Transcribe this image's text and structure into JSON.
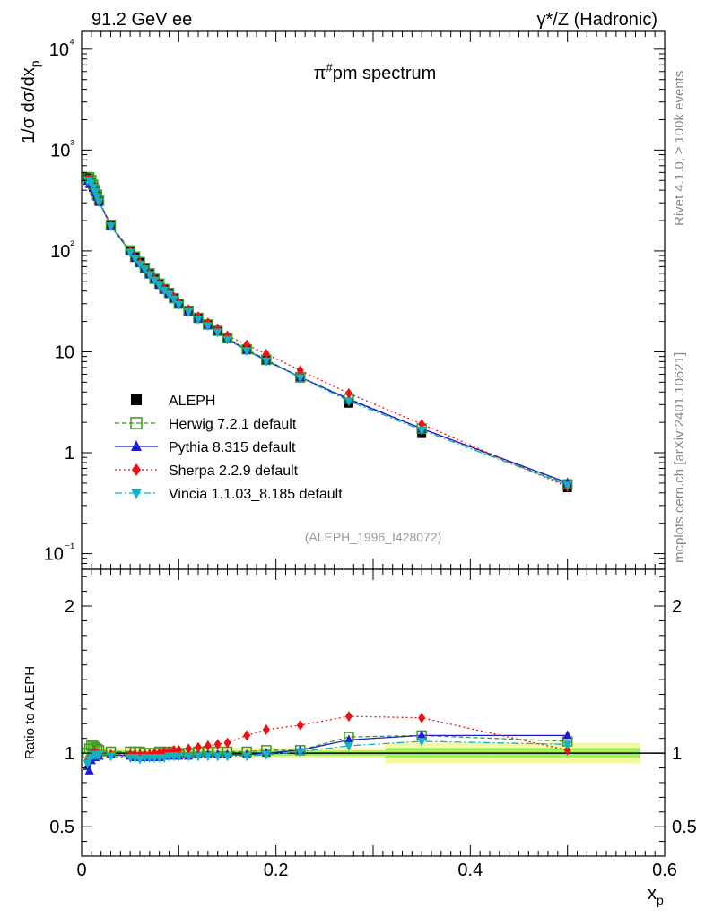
{
  "header": {
    "left": "91.2 GeV ee",
    "right": "γ*/Z (Hadronic)"
  },
  "side_text": {
    "top": "Rivet 4.1.0, ≥ 100k events",
    "bottom": "mcplots.cern.ch [arXiv:2401.10621]"
  },
  "chart_data": {
    "type": "line",
    "title": "π#pm spectrum",
    "watermark": "(ALEPH_1996_I428072)",
    "xlabel": "x_p",
    "ylabel_top": "1/σ dσ/dx_p",
    "ylabel_bottom": "Ratio to ALEPH",
    "xlim": [
      0,
      0.6
    ],
    "ylim_top": [
      0.07,
      15000
    ],
    "ylim_bottom": [
      0.3,
      2.25
    ],
    "yscale_top": "log",
    "x_ticks": [
      "0",
      "0.2",
      "0.4",
      "0.6"
    ],
    "y_ticks_top": [
      "10⁻¹",
      "1",
      "10",
      "10²",
      "10³",
      "10⁴"
    ],
    "y_ticks_bottom": [
      "0.5",
      "1",
      "2"
    ],
    "x": [
      0.006,
      0.008,
      0.01,
      0.012,
      0.014,
      0.016,
      0.018,
      0.03,
      0.05,
      0.055,
      0.06,
      0.065,
      0.07,
      0.075,
      0.08,
      0.085,
      0.09,
      0.095,
      0.1,
      0.11,
      0.12,
      0.13,
      0.14,
      0.15,
      0.17,
      0.19,
      0.225,
      0.275,
      0.35,
      0.5
    ],
    "data": {
      "name": "ALEPH",
      "values": [
        540,
        520,
        480,
        430,
        390,
        350,
        310,
        180,
        100,
        87,
        77,
        68,
        60,
        53,
        47,
        42,
        38,
        34,
        30,
        25.5,
        21.5,
        18.5,
        16,
        13.5,
        10.5,
        8.2,
        5.5,
        3.1,
        1.55,
        0.45
      ]
    },
    "series": [
      {
        "name": "Herwig 7.2.1 default",
        "ratio": [
          1.0,
          1.03,
          1.05,
          1.05,
          1.04,
          1.03,
          1.02,
          1.01,
          1.01,
          1.01,
          1.01,
          1.0,
          1.0,
          1.0,
          1.01,
          1.0,
          1.01,
          1.0,
          1.0,
          1.0,
          1.01,
          1.01,
          1.01,
          1.01,
          1.01,
          1.02,
          1.02,
          1.11,
          1.12,
          1.08
        ]
      },
      {
        "name": "Pythia 8.315 default",
        "ratio": [
          0.91,
          0.88,
          0.95,
          0.97,
          0.97,
          0.98,
          0.98,
          0.99,
          0.98,
          0.97,
          0.97,
          0.98,
          0.97,
          0.98,
          0.97,
          0.98,
          0.98,
          0.99,
          0.98,
          0.98,
          0.99,
          0.99,
          0.99,
          0.99,
          0.99,
          1.0,
          1.02,
          1.09,
          1.12,
          1.12
        ]
      },
      {
        "name": "Sherpa 2.2.9 default",
        "ratio": [
          0.95,
          0.98,
          0.99,
          1.0,
          1.0,
          0.99,
          0.99,
          0.99,
          0.99,
          0.99,
          0.99,
          0.99,
          0.99,
          1.0,
          1.0,
          1.01,
          1.01,
          1.02,
          1.02,
          1.03,
          1.04,
          1.05,
          1.06,
          1.07,
          1.12,
          1.16,
          1.19,
          1.25,
          1.24,
          1.02
        ]
      },
      {
        "name": "Vincia 1.1.03_8.185 default",
        "ratio": [
          0.93,
          0.96,
          0.98,
          0.99,
          0.99,
          0.99,
          0.99,
          0.98,
          0.97,
          0.97,
          0.96,
          0.97,
          0.97,
          0.97,
          0.97,
          0.97,
          0.98,
          0.98,
          0.98,
          0.98,
          0.98,
          0.98,
          0.98,
          0.98,
          0.98,
          0.99,
          1.01,
          1.05,
          1.08,
          1.06
        ]
      }
    ],
    "colors": {
      "data": "#000000",
      "herwig": "#3a9a1e",
      "pythia": "#1c1cd6",
      "sherpa": "#ee1111",
      "vincia": "#14b1c2",
      "band_inner": "#9ef060",
      "band_outer": "#f6f8a0"
    }
  }
}
